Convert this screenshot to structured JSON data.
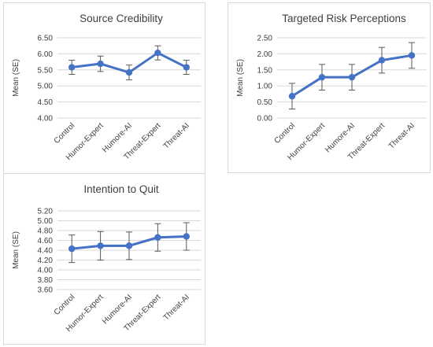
{
  "colors": {
    "series": "#4472c4",
    "error_bar": "#595959",
    "grid": "#d9d9d9",
    "text": "#404040"
  },
  "chart_data": [
    {
      "type": "line",
      "title": "Source Credibility",
      "ylabel": "Mean (SE)",
      "xlabel": "",
      "categories": [
        "Control",
        "Humor-Expert",
        "Humore-AI",
        "Threat-Expert",
        "Threat-AI"
      ],
      "y_ticks": [
        "6.50",
        "6.00",
        "5.50",
        "5.00",
        "4.50",
        "4.00"
      ],
      "ylim": [
        4.0,
        6.5
      ],
      "grid": true,
      "series": [
        {
          "values": [
            5.58,
            5.69,
            5.42,
            6.03,
            5.58
          ],
          "error": [
            0.22,
            0.24,
            0.23,
            0.22,
            0.22
          ]
        }
      ]
    },
    {
      "type": "line",
      "title": "Targeted Risk Perceptions",
      "ylabel": "Mean (SE)",
      "xlabel": "",
      "categories": [
        "Control",
        "Humor-Expert",
        "Humore-AI",
        "Threat-Expert",
        "Threat-AI"
      ],
      "y_ticks": [
        "2.50",
        "2.00",
        "1.50",
        "1.00",
        "0.50",
        "0.00"
      ],
      "ylim": [
        0.0,
        2.5
      ],
      "grid": true,
      "series": [
        {
          "values": [
            0.68,
            1.27,
            1.27,
            1.8,
            1.95
          ],
          "error": [
            0.4,
            0.4,
            0.4,
            0.4,
            0.4
          ]
        }
      ]
    },
    {
      "type": "line",
      "title": "Intention to Quit",
      "ylabel": "Mean (SE)",
      "xlabel": "",
      "categories": [
        "Control",
        "Humor-Expert",
        "Humore-AI",
        "Threat-Expert",
        "Threat-AI"
      ],
      "y_ticks": [
        "5.20",
        "5.00",
        "4.80",
        "4.60",
        "4.40",
        "4.20",
        "4.00",
        "3.80",
        "3.60"
      ],
      "ylim": [
        3.6,
        5.2
      ],
      "grid": true,
      "series": [
        {
          "values": [
            4.43,
            4.49,
            4.49,
            4.66,
            4.68
          ],
          "error": [
            0.28,
            0.29,
            0.28,
            0.28,
            0.28
          ]
        }
      ]
    }
  ]
}
